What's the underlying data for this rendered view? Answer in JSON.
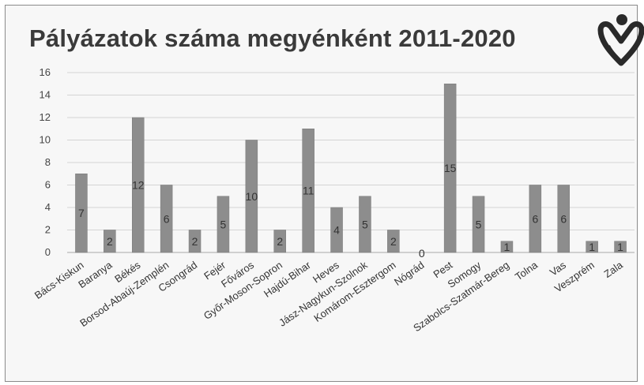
{
  "chart_data": {
    "type": "bar",
    "title": "Pályázatok száma megyénként 2011-2020",
    "categories": [
      "Bács-Kiskun",
      "Baranya",
      "Békés",
      "Borsod-Abaúj-Zemplén",
      "Csongrád",
      "Fejér",
      "Főváros",
      "Győr-Moson-Sopron",
      "Hajdú-Bihar",
      "Heves",
      "Jász-Nagykun-Szolnok",
      "Komárom-Esztergom",
      "Nógrád",
      "Pest",
      "Somogy",
      "Szabolcs-Szatmár-Bereg",
      "Tolna",
      "Vas",
      "Veszprém",
      "Zala"
    ],
    "values": [
      7,
      2,
      12,
      6,
      2,
      5,
      10,
      2,
      11,
      4,
      5,
      2,
      0,
      15,
      5,
      1,
      6,
      6,
      1,
      1
    ],
    "yticks": [
      0,
      2,
      4,
      6,
      8,
      10,
      12,
      14,
      16
    ],
    "ylim": [
      0,
      16
    ],
    "xlabel": "",
    "ylabel": "",
    "grid": true,
    "data_labels": true,
    "colors": {
      "bar": "#8d8d8d",
      "bar_edge": "#7a7a7a",
      "grid": "#d4d4d4",
      "background": "#f7f7f7",
      "logo": "#2a2a2a"
    }
  },
  "logo": {
    "icon": "heart-person-logo-icon"
  }
}
